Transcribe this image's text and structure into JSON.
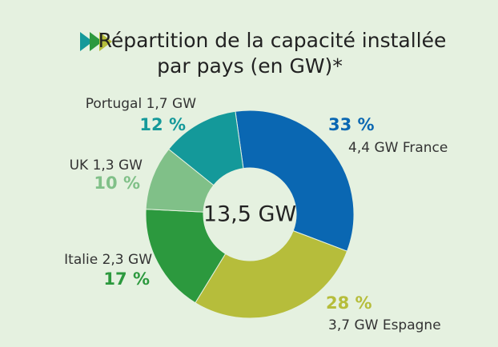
{
  "chart_data": {
    "type": "donut",
    "title": [
      "Répartition de la capacité installée",
      "par pays (en GW)*"
    ],
    "center_label": "13,5 GW",
    "categories": [
      "4,4 GW France",
      "3,7 GW Espagne",
      "Italie 2,3 GW",
      "UK 1,3 GW",
      "Portugal 1,7 GW"
    ],
    "values": [
      33,
      28,
      17,
      10,
      12
    ],
    "value_labels": [
      "33 %",
      "28 %",
      "17 %",
      "10 %",
      "12 %"
    ],
    "colors": [
      "#0a67b2",
      "#b6bd3b",
      "#2c993e",
      "#80c088",
      "#14999a"
    ]
  }
}
